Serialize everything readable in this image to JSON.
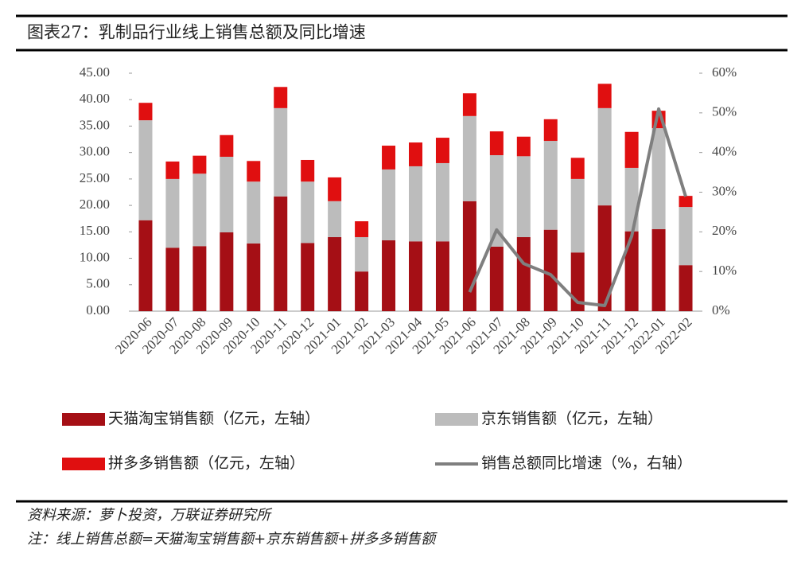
{
  "chart_data": {
    "type": "bar",
    "stacked": true,
    "title": "图表27：乳制品行业线上销售总额及同比增速",
    "categories": [
      "2020-06",
      "2020-07",
      "2020-08",
      "2020-09",
      "2020-10",
      "2020-11",
      "2020-12",
      "2021-01",
      "2021-02",
      "2021-03",
      "2021-04",
      "2021-05",
      "2021-06",
      "2021-07",
      "2021-08",
      "2021-09",
      "2021-10",
      "2021-11",
      "2021-12",
      "2022-01",
      "2022-02"
    ],
    "series": [
      {
        "name": "天猫淘宝销售额（亿元，左轴）",
        "color": "#a50f15",
        "values": [
          17.2,
          12.0,
          12.3,
          14.9,
          12.8,
          21.7,
          12.9,
          14.0,
          7.5,
          13.4,
          13.2,
          13.2,
          20.8,
          12.2,
          14.0,
          15.4,
          11.1,
          20.0,
          15.1,
          15.5,
          8.7
        ]
      },
      {
        "name": "京东销售额（亿元，左轴）",
        "color": "#bcbcbc",
        "values": [
          18.9,
          13.0,
          13.7,
          14.3,
          11.7,
          16.7,
          11.6,
          6.8,
          6.5,
          13.4,
          14.2,
          14.8,
          16.1,
          17.3,
          15.3,
          16.8,
          13.9,
          18.4,
          12.0,
          19.1,
          11.0
        ]
      },
      {
        "name": "拼多多销售额（亿元，左轴）",
        "color": "#e00f10",
        "values": [
          3.3,
          3.3,
          3.4,
          4.1,
          3.9,
          4.0,
          4.1,
          4.5,
          3.0,
          4.5,
          4.5,
          4.8,
          4.3,
          4.5,
          3.7,
          4.1,
          4.0,
          4.6,
          6.8,
          3.3,
          2.1
        ]
      },
      {
        "name": "销售总额同比增速（%，右轴）",
        "color": "#7f7f7f",
        "type": "line",
        "axis": "y2",
        "values": [
          null,
          null,
          null,
          null,
          null,
          null,
          null,
          null,
          null,
          null,
          null,
          null,
          4.8,
          20.5,
          12.0,
          9.2,
          2.2,
          1.4,
          18.9,
          51.0,
          28.9
        ]
      }
    ],
    "ylim": [
      0,
      45
    ],
    "yticks": [
      {
        "value": 0,
        "label": "0.00"
      },
      {
        "value": 5,
        "label": "5.00"
      },
      {
        "value": 10,
        "label": "10.00"
      },
      {
        "value": 15,
        "label": "15.00"
      },
      {
        "value": 20,
        "label": "20.00"
      },
      {
        "value": 25,
        "label": "25.00"
      },
      {
        "value": 30,
        "label": "30.00"
      },
      {
        "value": 35,
        "label": "35.00"
      },
      {
        "value": 40,
        "label": "40.00"
      },
      {
        "value": 45,
        "label": "45.00"
      }
    ],
    "y2lim": [
      0,
      60
    ],
    "y2ticks": [
      {
        "value": 0,
        "label": "0%"
      },
      {
        "value": 10,
        "label": "10%"
      },
      {
        "value": 20,
        "label": "20%"
      },
      {
        "value": 30,
        "label": "30%"
      },
      {
        "value": 40,
        "label": "40%"
      },
      {
        "value": 50,
        "label": "50%"
      },
      {
        "value": 60,
        "label": "60%"
      }
    ],
    "source": "资料来源：萝卜投资，万联证券研究所",
    "note": "注：线上销售总额=天猫淘宝销售额+京东销售额+拼多多销售额"
  }
}
